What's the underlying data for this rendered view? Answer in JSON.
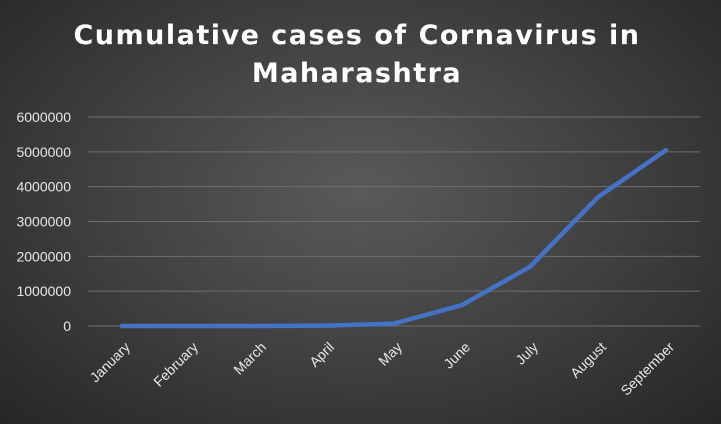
{
  "chart_data": {
    "type": "line",
    "title_lines": [
      "Cumulative cases of Cornavirus in",
      "Maharashtra"
    ],
    "categories": [
      "January",
      "February",
      "March",
      "April",
      "May",
      "June",
      "July",
      "August",
      "September"
    ],
    "series": [
      {
        "values": [
          0,
          0,
          300,
          10500,
          67600,
          600000,
          1700000,
          3700000,
          5050000
        ],
        "color": "#4472c4"
      }
    ],
    "yticks": [
      0,
      1000000,
      2000000,
      3000000,
      4000000,
      5000000,
      6000000
    ],
    "ylim": [
      0,
      6000000
    ],
    "grid": true,
    "legend": false,
    "xlabel": "",
    "ylabel": ""
  }
}
